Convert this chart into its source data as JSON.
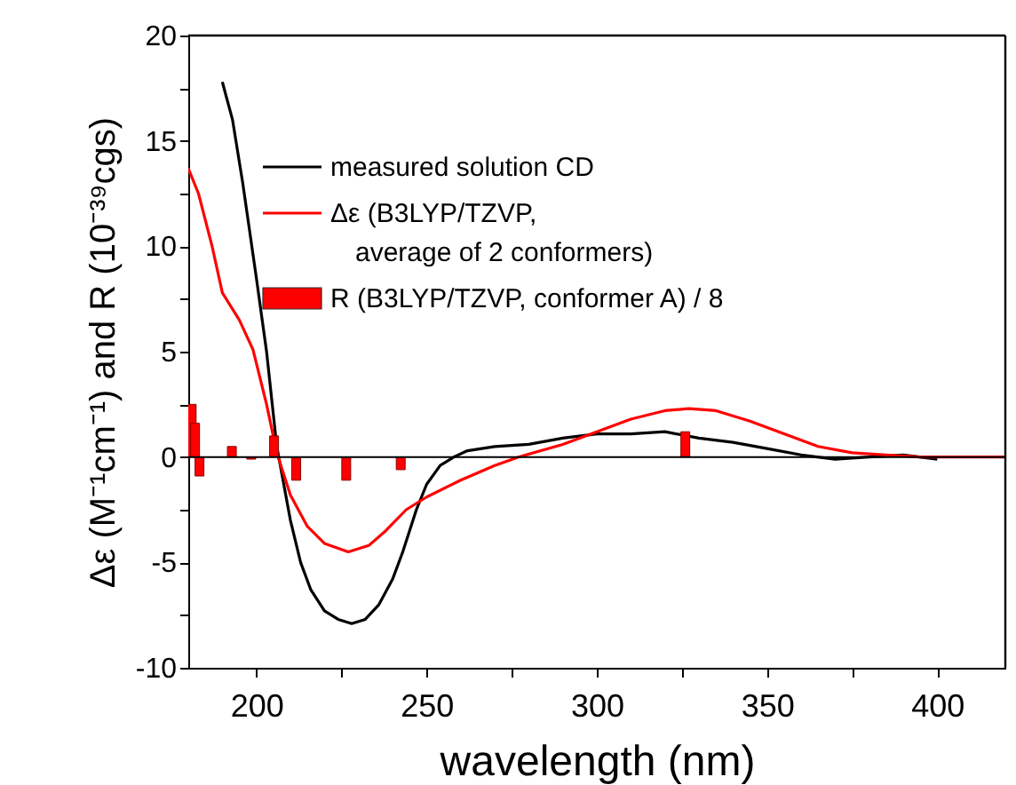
{
  "chart_data": {
    "type": "line",
    "xlabel": "wavelength (nm)",
    "ylabel": "Δε (M⁻¹cm⁻¹) and R (10⁻³⁹cgs)",
    "xlim": [
      180,
      420
    ],
    "ylim": [
      -10,
      20
    ],
    "xticks": [
      200,
      {
        "value": 225,
        "label": null
      },
      250,
      {
        "value": 275,
        "label": null
      },
      300,
      {
        "value": 325,
        "label": null
      },
      350,
      {
        "value": 375,
        "label": null
      },
      400
    ],
    "yticks": [
      -10,
      {
        "value": -7.5,
        "label": null
      },
      -5,
      {
        "value": -2.5,
        "label": null
      },
      0,
      {
        "value": 2.5,
        "label": null
      },
      5,
      {
        "value": 7.5,
        "label": null
      },
      10,
      {
        "value": 12.5,
        "label": null
      },
      15,
      {
        "value": 17.5,
        "label": null
      },
      20
    ],
    "grid": false,
    "legend": "top left",
    "ref_lines": [
      {
        "axis": "y",
        "value": 0,
        "color": "#000000"
      }
    ],
    "series": [
      {
        "name": "measured solution CD",
        "color": "#000000",
        "x": [
          190,
          193,
          196,
          200,
          203,
          206,
          210,
          213,
          216,
          220,
          224,
          228,
          232,
          236,
          240,
          243,
          247,
          250,
          254,
          258,
          262,
          270,
          280,
          290,
          300,
          310,
          320,
          330,
          340,
          350,
          360,
          370,
          380,
          390,
          400
        ],
        "values": [
          17.8,
          16,
          13,
          8.5,
          5,
          0.5,
          -3,
          -5,
          -6.3,
          -7.3,
          -7.7,
          -7.9,
          -7.7,
          -7,
          -5.8,
          -4.5,
          -2.5,
          -1.3,
          -0.4,
          0,
          0.3,
          0.5,
          0.6,
          0.9,
          1.1,
          1.1,
          1.2,
          0.9,
          0.7,
          0.4,
          0.1,
          -0.1,
          0,
          0.1,
          -0.1
        ]
      },
      {
        "name": "Δε (B3LYP/TZVP,\naverage of 2 conformers)",
        "color": "#ff0000",
        "x": [
          180,
          183,
          187,
          190,
          195,
          199,
          203,
          206,
          210,
          215,
          220,
          227,
          233,
          238,
          244,
          250,
          260,
          270,
          277,
          290,
          300,
          310,
          320,
          327,
          335,
          345,
          355,
          365,
          375,
          385,
          395,
          405,
          420
        ],
        "values": [
          13.7,
          12.5,
          10,
          7.8,
          6.5,
          5.1,
          2.5,
          0.2,
          -1.8,
          -3.3,
          -4.1,
          -4.5,
          -4.2,
          -3.5,
          -2.5,
          -1.9,
          -1.1,
          -0.4,
          0,
          0.6,
          1.2,
          1.8,
          2.2,
          2.3,
          2.2,
          1.7,
          1.1,
          0.5,
          0.2,
          0.1,
          0,
          0,
          0
        ]
      },
      {
        "name": "R (B3LYP/TZVP, conformer A) / 8",
        "type": "bar",
        "color": "#ff0000",
        "x": [
          181,
          182,
          183.3,
          192.8,
          198.5,
          205.2,
          211.7,
          226.4,
          242.4,
          326
        ],
        "values": [
          2.5,
          1.6,
          -0.9,
          0.5,
          -0.1,
          1,
          -1.1,
          -1.1,
          -0.6,
          1.2
        ]
      }
    ]
  }
}
